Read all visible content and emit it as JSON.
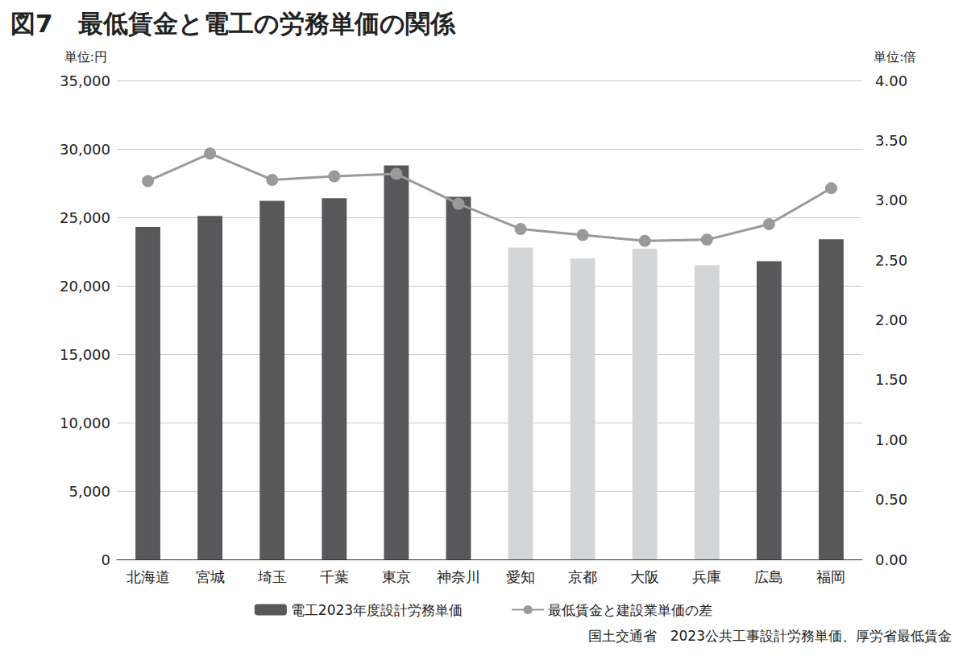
{
  "chart_data": {
    "type": "bar",
    "title": "図7　最低賃金と電工の労務単価の関係",
    "source": "国土交通省　2023公共工事設計労務単価、厚労省最低賃金",
    "y_label": "単位:円",
    "y2_label": "単位:倍",
    "categories": [
      "北海道",
      "宮城",
      "埼玉",
      "千葉",
      "東京",
      "神奈川",
      "愛知",
      "京都",
      "大阪",
      "兵庫",
      "広島",
      "福岡"
    ],
    "series": [
      {
        "name": "電工2023年度設計労務単価",
        "type": "bar",
        "colors": [
          "#58585a",
          "#58585a",
          "#58585a",
          "#58585a",
          "#58585a",
          "#58585a",
          "#d4d5d7",
          "#d4d5d7",
          "#d4d5d7",
          "#d4d5d7",
          "#58585a",
          "#58585a"
        ],
        "values": [
          24300,
          25100,
          26200,
          26400,
          28800,
          26500,
          22800,
          22000,
          22700,
          21500,
          21800,
          23400
        ]
      },
      {
        "name": "最低賃金と建設業単価の差",
        "type": "line",
        "axis": "y2",
        "color": "#9a9a9a",
        "marker": "circle",
        "values": [
          3.16,
          3.39,
          3.17,
          3.2,
          3.22,
          2.97,
          2.76,
          2.71,
          2.66,
          2.67,
          2.8,
          3.1
        ]
      }
    ],
    "ylim": [
      0,
      35000
    ],
    "yticks": [
      0,
      {
        "value": 5000,
        "label": "5,000"
      },
      {
        "value": 10000,
        "label": "10,000"
      },
      {
        "value": 15000,
        "label": "15,000"
      },
      {
        "value": 20000,
        "label": "20,000"
      },
      {
        "value": 25000,
        "label": "25,000"
      },
      {
        "value": 30000,
        "label": "30,000"
      },
      {
        "value": 35000,
        "label": "35,000"
      }
    ],
    "y2lim": [
      0,
      4
    ],
    "y2ticks": [
      {
        "value": 0,
        "label": "0.00"
      },
      {
        "value": 0.5,
        "label": "0.50"
      },
      {
        "value": 1,
        "label": "1.00"
      },
      {
        "value": 1.5,
        "label": "1.50"
      },
      {
        "value": 2,
        "label": "2.00"
      },
      {
        "value": 2.5,
        "label": "2.50"
      },
      {
        "value": 3,
        "label": "3.00"
      },
      {
        "value": 3.5,
        "label": "3.50"
      },
      {
        "value": 4,
        "label": "4.00"
      }
    ],
    "grid": true,
    "legend": "bottom"
  }
}
